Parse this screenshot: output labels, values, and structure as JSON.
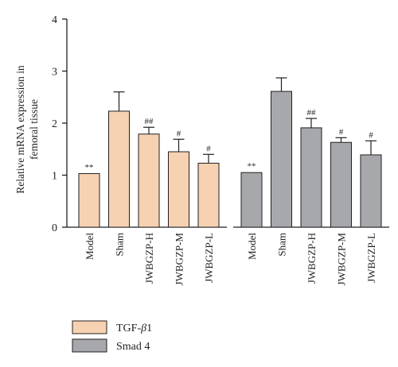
{
  "chart_data": {
    "type": "bar",
    "ylabel": [
      "Relative mRNA expression in",
      "femoral tissue"
    ],
    "ylim": [
      0,
      4
    ],
    "yticks": [
      0,
      1,
      2,
      3,
      4
    ],
    "categories": [
      "Model",
      "Sham",
      "JWBGZP-H",
      "JWBGZP-M",
      "JWBGZP-L"
    ],
    "series": [
      {
        "name": "TGF-β1",
        "name_parts": [
          "TGF-",
          "β",
          "1"
        ],
        "color": "#f6d2b2",
        "values": [
          1.03,
          2.23,
          1.79,
          1.45,
          1.23
        ],
        "errors": [
          0.01,
          0.37,
          0.13,
          0.24,
          0.17
        ],
        "markers": [
          "**",
          "",
          "##",
          "#",
          "#"
        ]
      },
      {
        "name": "Smad 4",
        "color": "#a7a8ab",
        "values": [
          1.05,
          2.61,
          1.91,
          1.63,
          1.39
        ],
        "errors": [
          0.01,
          0.26,
          0.18,
          0.09,
          0.27
        ],
        "markers": [
          "**",
          "",
          "##",
          "#",
          "#"
        ]
      }
    ],
    "legend": "bottom-left",
    "grid": false
  }
}
